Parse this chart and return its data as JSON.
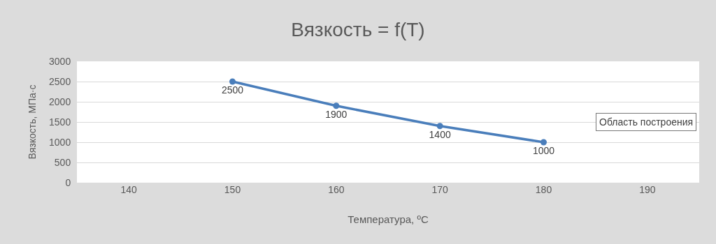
{
  "chart_data": {
    "type": "line",
    "title": "Вязкость = f(T)",
    "xlabel": "Температура, ºС",
    "ylabel": "Вязкость, МПа·с",
    "x": [
      150,
      160,
      170,
      180
    ],
    "series": [
      {
        "color": "#4a7ebb",
        "values": [
          2500,
          1900,
          1400,
          1000
        ]
      }
    ],
    "xlim": [
      135,
      195
    ],
    "xticks": [
      140,
      150,
      160,
      170,
      180,
      190
    ],
    "ylim": [
      0,
      3000
    ],
    "yticks": [
      0,
      500,
      1000,
      1500,
      2000,
      2500,
      3000
    ],
    "grid": "y",
    "marker": "circle",
    "line_style": "solid",
    "data_labels": true,
    "annotations": [
      "Область построения"
    ]
  }
}
